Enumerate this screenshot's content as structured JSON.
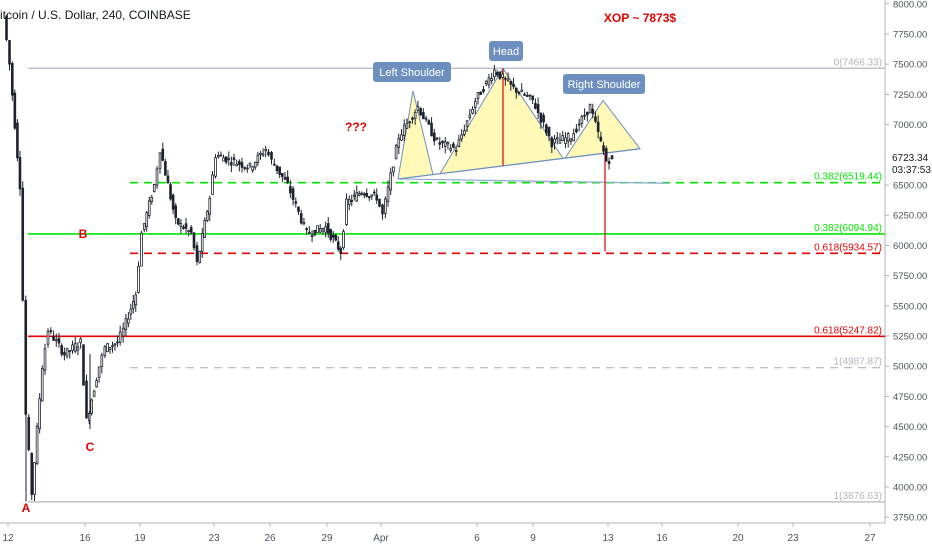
{
  "header": {
    "symbol_title": "itcoin / U.S. Dollar, 240, COINBASE"
  },
  "price_axis": {
    "ticks": [
      3750,
      4000,
      4250,
      4500,
      4750,
      5000,
      5250,
      5500,
      5750,
      6000,
      6250,
      6500,
      6750,
      7000,
      7250,
      7500,
      7750,
      8000
    ],
    "tick_labels": [
      "3750.00",
      "4000.00",
      "4250.00",
      "4500.00",
      "4750.00",
      "5000.00",
      "5250.00",
      "5500.00",
      "5750.00",
      "6000.00",
      "6250.00",
      "6500.00",
      "6750.00",
      "7000.00",
      "7250.00",
      "7500.00",
      "7750.00",
      "8000.00"
    ],
    "current_price": "6723.34",
    "countdown": "03:37:53"
  },
  "time_axis": {
    "labels": [
      "12",
      "16",
      "19",
      "23",
      "26",
      "29",
      "Apr",
      "6",
      "9",
      "13",
      "16",
      "20",
      "23",
      "27"
    ]
  },
  "colors": {
    "candle": "#1e222d",
    "green": "#00e600",
    "red": "#e60000",
    "gray": "#b2b5be",
    "pattern_fill": "#fff59d",
    "callout": "#6d8fbf"
  },
  "chart_data": {
    "type": "candlestick",
    "title": "itcoin / U.S. Dollar, 240, COINBASE",
    "ylim": [
      3700,
      8040
    ],
    "x_axis_ticks": [
      "12",
      "16",
      "19",
      "23",
      "26",
      "29",
      "Apr",
      "6",
      "9",
      "13",
      "16",
      "20",
      "23",
      "27"
    ],
    "close_path": [
      [
        "12",
        7900
      ],
      [
        "12",
        7500
      ],
      [
        "13",
        6500
      ],
      [
        "13",
        4600
      ],
      [
        "13",
        3950
      ],
      [
        "14",
        5000
      ],
      [
        "14",
        5300
      ],
      [
        "15",
        5100
      ],
      [
        "16",
        5200
      ],
      [
        "16",
        4550
      ],
      [
        "17",
        5000
      ],
      [
        "17",
        5150
      ],
      [
        "18",
        5200
      ],
      [
        "18",
        5300
      ],
      [
        "19",
        5600
      ],
      [
        "19",
        6100
      ],
      [
        "20",
        6500
      ],
      [
        "20",
        6800
      ],
      [
        "21",
        6200
      ],
      [
        "22",
        6100
      ],
      [
        "22",
        5850
      ],
      [
        "23",
        6400
      ],
      [
        "23",
        6750
      ],
      [
        "24",
        6700
      ],
      [
        "25",
        6650
      ],
      [
        "26",
        6800
      ],
      [
        "26",
        6700
      ],
      [
        "27",
        6500
      ],
      [
        "28",
        6100
      ],
      [
        "29",
        6150
      ],
      [
        "30",
        5950
      ],
      [
        "30",
        6350
      ],
      [
        "31",
        6450
      ],
      [
        "Apr 1",
        6400
      ],
      [
        "Apr 1",
        6250
      ],
      [
        "Apr 2",
        6900
      ],
      [
        "Apr 3",
        7150
      ],
      [
        "Apr 4",
        6850
      ],
      [
        "Apr 5",
        6800
      ],
      [
        "Apr 6",
        7200
      ],
      [
        "Apr 7",
        7450
      ],
      [
        "Apr 8",
        7300
      ],
      [
        "Apr 9",
        7200
      ],
      [
        "Apr 10",
        6850
      ],
      [
        "Apr 11",
        6900
      ],
      [
        "Apr 12",
        7150
      ],
      [
        "Apr 13",
        6700
      ],
      [
        "Apr 13",
        6723
      ]
    ],
    "fib_levels": [
      {
        "label": "0(7466.33)",
        "value": 7466.33,
        "color": "gray",
        "dashed": false
      },
      {
        "label": "0.382(6519.44)",
        "value": 6519.44,
        "color": "green",
        "dashed": true
      },
      {
        "label": "0.382(6094.94)",
        "value": 6094.94,
        "color": "green",
        "dashed": false
      },
      {
        "label": "0.618(5934.57)",
        "value": 5934.57,
        "color": "red",
        "dashed": true
      },
      {
        "label": "0.618(5247.82)",
        "value": 5247.82,
        "color": "red",
        "dashed": false
      },
      {
        "label": "1(4987.87)",
        "value": 4987.87,
        "color": "gray",
        "dashed": true
      },
      {
        "label": "1(3876.63)",
        "value": 3876.63,
        "color": "gray",
        "dashed": false
      }
    ],
    "pattern": {
      "name": "Head and Shoulders",
      "labels": {
        "left": "Left Shoulder",
        "head": "Head",
        "right": "Right Shoulder"
      },
      "left_shoulder": 7280,
      "head": 7466,
      "right_shoulder": 7200,
      "neckline_start": 6550,
      "neckline_end": 6800
    },
    "annotations": [
      {
        "text": "XOP ~ 7873$",
        "color": "red"
      },
      {
        "text": "???",
        "color": "red"
      },
      {
        "text": "A",
        "color": "red"
      },
      {
        "text": "B",
        "color": "red"
      },
      {
        "text": "C",
        "color": "red"
      }
    ]
  }
}
